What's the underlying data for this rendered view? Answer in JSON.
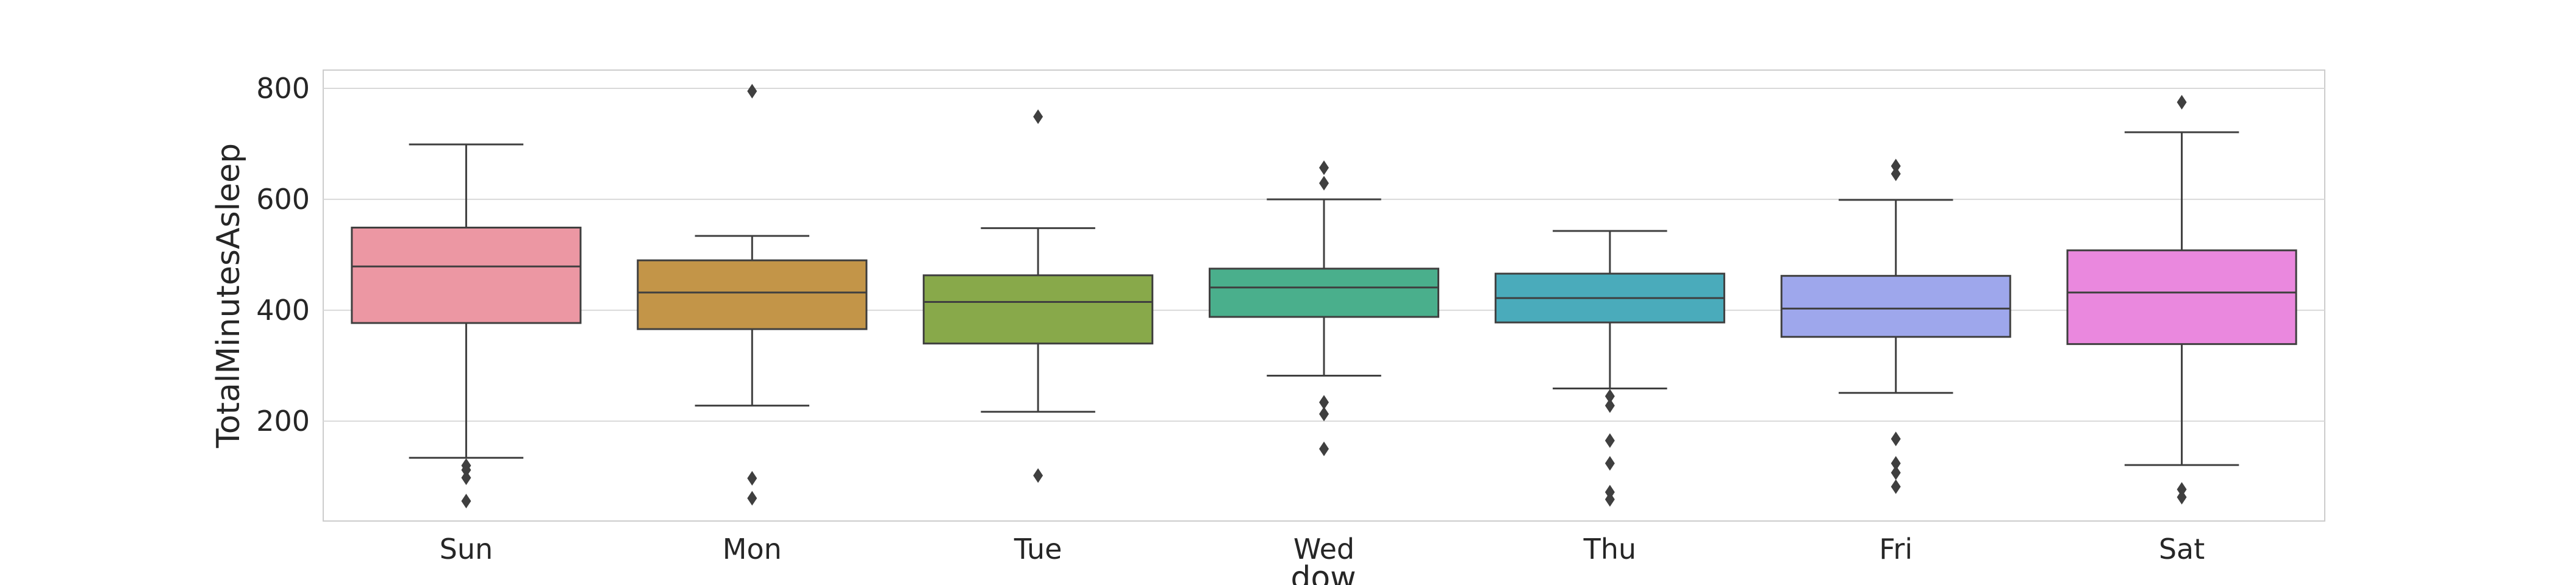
{
  "chart_data": {
    "type": "box",
    "xlabel": "dow",
    "ylabel": "TotalMinutesAsleep",
    "categories": [
      "Sun",
      "Mon",
      "Tue",
      "Wed",
      "Thu",
      "Fri",
      "Sat"
    ],
    "yticks": [
      200,
      400,
      600,
      800
    ],
    "ylim": [
      20,
      833
    ],
    "grid": true,
    "boxes": [
      {
        "category": "Sun",
        "whisker_low": 134,
        "q1": 377,
        "median": 479,
        "q3": 549,
        "whisker_high": 699,
        "outliers": [
          120,
          112,
          98,
          56
        ],
        "color": "#ec97a3"
      },
      {
        "category": "Mon",
        "whisker_low": 228,
        "q1": 366,
        "median": 432,
        "q3": 490,
        "whisker_high": 534,
        "outliers": [
          795,
          97,
          61
        ],
        "color": "#c39548"
      },
      {
        "category": "Tue",
        "whisker_low": 217,
        "q1": 340,
        "median": 415,
        "q3": 463,
        "whisker_high": 548,
        "outliers": [
          749,
          102
        ],
        "color": "#88a94a"
      },
      {
        "category": "Wed",
        "whisker_low": 282,
        "q1": 388,
        "median": 441,
        "q3": 475,
        "whisker_high": 600,
        "outliers": [
          657,
          629,
          234,
          213,
          150
        ],
        "color": "#4aaf8c"
      },
      {
        "category": "Thu",
        "whisker_low": 259,
        "q1": 378,
        "median": 422,
        "q3": 466,
        "whisker_high": 543,
        "outliers": [
          245,
          228,
          165,
          124,
          72,
          59
        ],
        "color": "#4aabbb"
      },
      {
        "category": "Fri",
        "whisker_low": 251,
        "q1": 352,
        "median": 403,
        "q3": 462,
        "whisker_high": 599,
        "outliers": [
          660,
          646,
          168,
          124,
          107,
          82
        ],
        "color": "#9ea7ec"
      },
      {
        "category": "Sat",
        "whisker_low": 121,
        "q1": 339,
        "median": 432,
        "q3": 508,
        "whisker_high": 721,
        "outliers": [
          775,
          77,
          63
        ],
        "color": "#ea88de"
      }
    ]
  }
}
